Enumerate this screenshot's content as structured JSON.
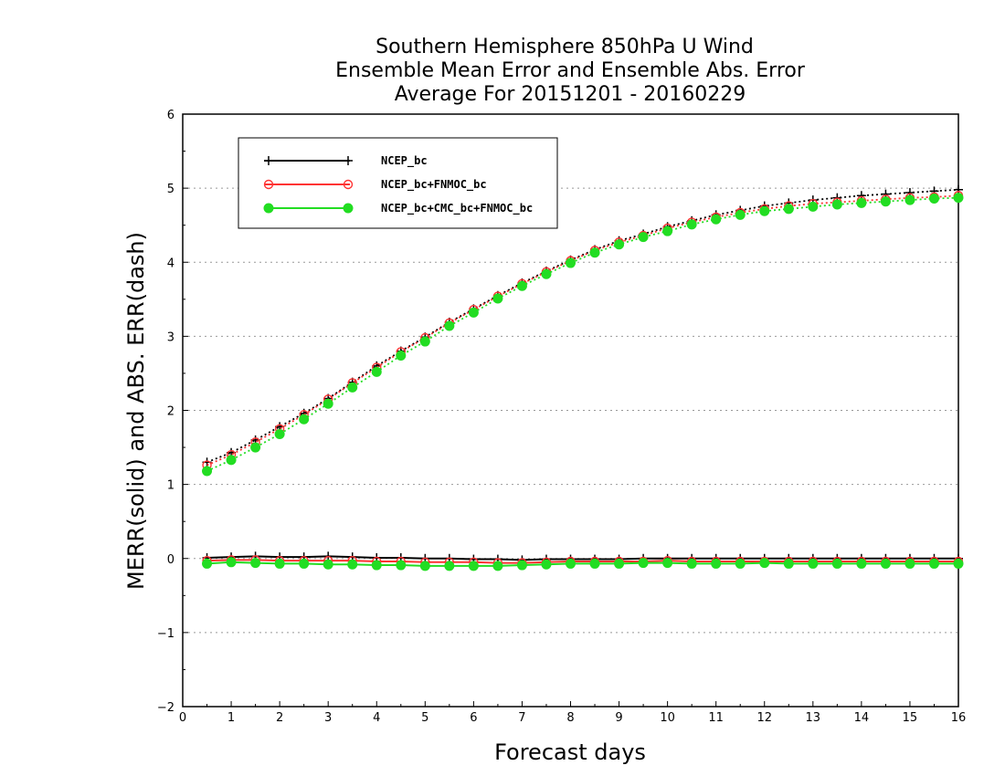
{
  "chart_data": {
    "type": "line",
    "title_lines": [
      "Southern Hemisphere 850hPa U Wind",
      "Ensemble Mean Error and Ensemble Abs. Error",
      "Average For 20151201 - 20160229"
    ],
    "xlabel": "Forecast days",
    "ylabel": "MERR(solid) and ABS. ERR(dash)",
    "xlim": [
      0,
      16
    ],
    "ylim": [
      -2,
      6
    ],
    "x_ticks": [
      "0",
      "1",
      "2",
      "3",
      "4",
      "5",
      "6",
      "7",
      "8",
      "9",
      "10",
      "11",
      "12",
      "13",
      "14",
      "15",
      "16"
    ],
    "y_ticks": [
      "6",
      "5",
      "4",
      "3",
      "2",
      "1",
      "0",
      "−1",
      "−2"
    ],
    "grid": "horizontal dotted",
    "legend_position": "top-left",
    "x": [
      0.5,
      1,
      1.5,
      2,
      2.5,
      3,
      3.5,
      4,
      4.5,
      5,
      5.5,
      6,
      6.5,
      7,
      7.5,
      8,
      8.5,
      9,
      9.5,
      10,
      10.5,
      11,
      11.5,
      12,
      12.5,
      13,
      13.5,
      14,
      14.5,
      15,
      15.5,
      16
    ],
    "series": [
      {
        "name": "NCEP_bc",
        "color": "#000000",
        "marker": "plus",
        "merr": [
          0.01,
          0.02,
          0.03,
          0.02,
          0.02,
          0.03,
          0.02,
          0.01,
          0.01,
          0.0,
          0.0,
          -0.01,
          -0.01,
          -0.02,
          -0.01,
          -0.01,
          -0.01,
          -0.01,
          0.0,
          0.0,
          0.0,
          0.0,
          0.0,
          0.0,
          0.0,
          0.0,
          0.0,
          0.0,
          0.0,
          0.0,
          0.0,
          0.0
        ],
        "abs_err": [
          1.3,
          1.43,
          1.6,
          1.78,
          1.96,
          2.16,
          2.38,
          2.6,
          2.8,
          2.99,
          3.19,
          3.37,
          3.55,
          3.72,
          3.88,
          4.03,
          4.17,
          4.29,
          4.38,
          4.48,
          4.56,
          4.64,
          4.7,
          4.76,
          4.8,
          4.84,
          4.87,
          4.9,
          4.92,
          4.94,
          4.96,
          4.98
        ]
      },
      {
        "name": "NCEP_bc+FNMOC_bc",
        "color": "#ff3333",
        "marker": "open-circle",
        "merr": [
          -0.03,
          -0.02,
          -0.02,
          -0.03,
          -0.03,
          -0.03,
          -0.03,
          -0.04,
          -0.04,
          -0.05,
          -0.05,
          -0.05,
          -0.06,
          -0.06,
          -0.05,
          -0.04,
          -0.04,
          -0.04,
          -0.04,
          -0.03,
          -0.04,
          -0.04,
          -0.04,
          -0.04,
          -0.04,
          -0.04,
          -0.04,
          -0.04,
          -0.04,
          -0.04,
          -0.04,
          -0.04
        ],
        "abs_err": [
          1.26,
          1.4,
          1.57,
          1.75,
          1.94,
          2.15,
          2.37,
          2.58,
          2.79,
          2.98,
          3.18,
          3.36,
          3.54,
          3.71,
          3.87,
          4.02,
          4.16,
          4.27,
          4.36,
          4.46,
          4.54,
          4.61,
          4.67,
          4.72,
          4.76,
          4.79,
          4.81,
          4.83,
          4.85,
          4.87,
          4.88,
          4.9
        ]
      },
      {
        "name": "NCEP_bc+CMC_bc+FNMOC_bc",
        "color": "#22dd22",
        "marker": "filled-circle",
        "merr": [
          -0.07,
          -0.05,
          -0.06,
          -0.07,
          -0.07,
          -0.08,
          -0.08,
          -0.09,
          -0.09,
          -0.1,
          -0.1,
          -0.1,
          -0.1,
          -0.09,
          -0.08,
          -0.07,
          -0.07,
          -0.07,
          -0.06,
          -0.06,
          -0.07,
          -0.07,
          -0.07,
          -0.06,
          -0.07,
          -0.07,
          -0.07,
          -0.07,
          -0.07,
          -0.07,
          -0.07,
          -0.07
        ],
        "abs_err": [
          1.18,
          1.33,
          1.5,
          1.68,
          1.88,
          2.09,
          2.31,
          2.52,
          2.74,
          2.93,
          3.14,
          3.32,
          3.51,
          3.68,
          3.84,
          3.99,
          4.13,
          4.24,
          4.34,
          4.42,
          4.51,
          4.58,
          4.64,
          4.69,
          4.72,
          4.75,
          4.78,
          4.8,
          4.82,
          4.84,
          4.86,
          4.87
        ]
      }
    ]
  }
}
